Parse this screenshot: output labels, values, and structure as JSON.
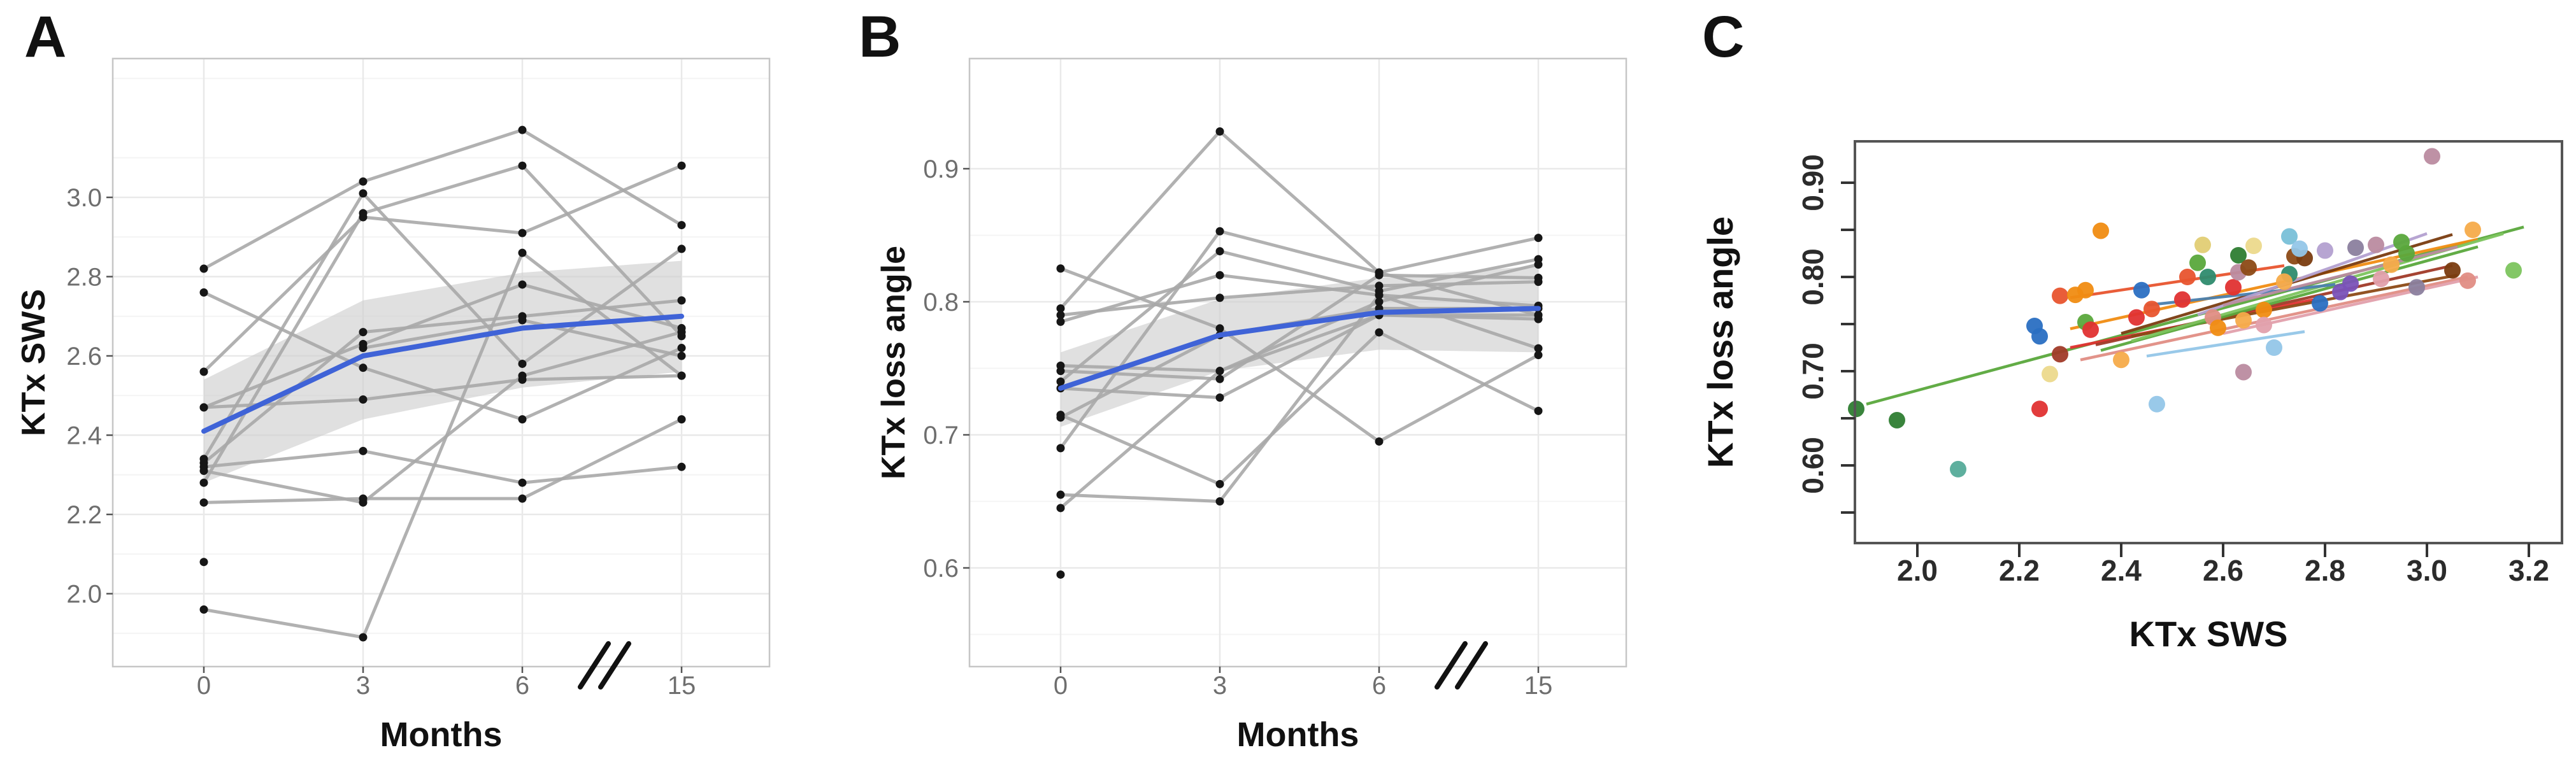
{
  "figure": {
    "panel_a_letter": "A",
    "panel_b_letter": "B",
    "panel_c_letter": "C"
  },
  "chart_data": [
    {
      "type": "line",
      "panel": "A",
      "xlabel": "Months",
      "ylabel": "KTx SWS",
      "x_categories": [
        "0",
        "3",
        "6",
        "15"
      ],
      "x_axis_break": "between 6 and 15",
      "ylim": [
        1.82,
        3.35
      ],
      "ytick_values": [
        2.0,
        2.2,
        2.4,
        2.6,
        2.8,
        3.0
      ],
      "ytick_labels": [
        "2.0",
        "2.2",
        "2.4",
        "2.6",
        "2.8",
        "3.0"
      ],
      "ytick_minor": [
        1.9,
        2.1,
        2.3,
        2.5,
        2.7,
        2.9,
        3.1,
        3.3
      ],
      "grid": "on",
      "subjects": [
        [
          2.82,
          3.04,
          3.17,
          2.93
        ],
        [
          2.76,
          2.57,
          2.44,
          2.62
        ],
        [
          2.56,
          2.95,
          2.91,
          3.08
        ],
        [
          2.47,
          2.63,
          2.78,
          2.67
        ],
        [
          2.47,
          2.49,
          2.54,
          2.55
        ],
        [
          2.34,
          3.01,
          2.58,
          2.87
        ],
        [
          2.33,
          2.66,
          2.7,
          2.74
        ],
        [
          2.32,
          2.36,
          2.28,
          2.32
        ],
        [
          2.31,
          2.23,
          2.55,
          2.66
        ],
        [
          2.28,
          2.96,
          3.08,
          2.65
        ],
        [
          2.23,
          2.24,
          2.24,
          2.44
        ],
        [
          null,
          2.62,
          2.69,
          2.6
        ],
        [
          1.96,
          1.89,
          2.86,
          2.55
        ]
      ],
      "isolated_points": [
        [
          0,
          2.08
        ]
      ],
      "mean_line": [
        2.41,
        2.6,
        2.67,
        2.7
      ],
      "band_lower": [
        2.28,
        2.44,
        2.52,
        2.56
      ],
      "band_upper": [
        2.54,
        2.74,
        2.81,
        2.84
      ],
      "colors": {
        "mean": "#3f63d7",
        "subject": "#a9a9a9",
        "point": "#161616",
        "band": "#cdcdcd",
        "grid_major": "#e9e9e9",
        "grid_minor": "#f4f4f4",
        "border": "#c6c6c6",
        "tick_label": "#6e6e6e",
        "axis_title": "#111111"
      }
    },
    {
      "type": "line",
      "panel": "B",
      "xlabel": "Months",
      "ylabel": "KTx loss angle",
      "x_categories": [
        "0",
        "3",
        "6",
        "15"
      ],
      "x_axis_break": "between 6 and 15",
      "ylim": [
        0.525,
        0.945
      ],
      "ytick_values": [
        0.6,
        0.7,
        0.8,
        0.9
      ],
      "ytick_labels": [
        "0.6",
        "0.7",
        "0.8",
        "0.9"
      ],
      "ytick_minor": [
        0.55,
        0.65,
        0.75,
        0.85
      ],
      "grid": "on",
      "subjects": [
        [
          0.825,
          0.78,
          0.695,
          0.76
        ],
        [
          0.795,
          0.928,
          0.822,
          0.79
        ],
        [
          0.79,
          0.803,
          0.812,
          0.815
        ],
        [
          0.785,
          0.82,
          0.805,
          0.797
        ],
        [
          0.752,
          0.748,
          0.8,
          0.828
        ],
        [
          0.748,
          0.742,
          0.82,
          0.818
        ],
        [
          0.74,
          0.838,
          0.808,
          0.832
        ],
        [
          0.735,
          0.728,
          0.79,
          0.787
        ],
        [
          0.715,
          0.663,
          0.777,
          0.718
        ],
        [
          0.713,
          0.775,
          0.795,
          0.795
        ],
        [
          0.69,
          0.853,
          0.822,
          0.848
        ],
        [
          0.655,
          0.65,
          0.805,
          0.765
        ],
        [
          0.645,
          0.748,
          0.79,
          0.79
        ]
      ],
      "isolated_points": [
        [
          0,
          0.595
        ]
      ],
      "mean_line": [
        0.735,
        0.775,
        0.792,
        0.795
      ],
      "band_lower": [
        0.706,
        0.748,
        0.764,
        0.762
      ],
      "band_upper": [
        0.762,
        0.802,
        0.818,
        0.827
      ],
      "colors": {
        "mean": "#3f63d7",
        "subject": "#a9a9a9",
        "point": "#161616",
        "band": "#cdcdcd",
        "grid_major": "#e9e9e9",
        "grid_minor": "#f4f4f4",
        "border": "#c6c6c6",
        "tick_label": "#6e6e6e",
        "axis_title": "#111111"
      }
    },
    {
      "type": "scatter",
      "panel": "C",
      "xlabel": "KTx SWS",
      "ylabel": "KTx loss angle",
      "xlim": [
        1.85,
        3.27
      ],
      "ylim": [
        0.52,
        0.945
      ],
      "xtick_values": [
        2.0,
        2.2,
        2.4,
        2.6,
        2.8,
        3.0,
        3.2
      ],
      "xtick_labels": [
        "2.0",
        "2.2",
        "2.4",
        "2.6",
        "2.8",
        "3.0",
        "3.2"
      ],
      "ytick_values": [
        0.6,
        0.7,
        0.8,
        0.9
      ],
      "ytick_labels": [
        "0.60",
        "0.70",
        "0.80",
        "0.90"
      ],
      "ytick_minor": [
        0.55,
        0.65,
        0.75,
        0.85
      ],
      "grid": "off",
      "palette": [
        "#2e7d32",
        "#5aa83c",
        "#7cc45e",
        "#55ab99",
        "#2e8b6e",
        "#79c0d8",
        "#93c6e8",
        "#2a6fc2",
        "#4a7fae",
        "#7a52b8",
        "#b3a0d0",
        "#8b7f9e",
        "#bb8ba0",
        "#e2a0ac",
        "#e08d84",
        "#e03131",
        "#a03a28",
        "#8c4a16",
        "#7a3c10",
        "#e8542e",
        "#f08c12",
        "#f5ab4a",
        "#e2cd74",
        "#ecd98c"
      ],
      "points": [
        [
          1.88,
          0.66,
          0
        ],
        [
          1.96,
          0.648,
          0
        ],
        [
          2.08,
          0.596,
          3
        ],
        [
          2.23,
          0.748,
          7
        ],
        [
          2.24,
          0.737,
          7
        ],
        [
          2.24,
          0.66,
          15
        ],
        [
          2.26,
          0.697,
          23
        ],
        [
          2.28,
          0.718,
          16
        ],
        [
          2.28,
          0.78,
          19
        ],
        [
          2.31,
          0.781,
          20
        ],
        [
          2.33,
          0.786,
          20
        ],
        [
          2.36,
          0.849,
          20
        ],
        [
          2.33,
          0.752,
          1
        ],
        [
          2.34,
          0.744,
          15
        ],
        [
          2.4,
          0.712,
          21
        ],
        [
          2.43,
          0.757,
          15
        ],
        [
          2.44,
          0.786,
          7
        ],
        [
          2.46,
          0.766,
          19
        ],
        [
          2.47,
          0.665,
          6
        ],
        [
          2.52,
          0.776,
          15
        ],
        [
          2.53,
          0.8,
          19
        ],
        [
          2.55,
          0.815,
          1
        ],
        [
          2.56,
          0.834,
          22
        ],
        [
          2.57,
          0.8,
          4
        ],
        [
          2.58,
          0.757,
          14
        ],
        [
          2.59,
          0.746,
          20
        ],
        [
          2.62,
          0.789,
          15
        ],
        [
          2.63,
          0.823,
          0
        ],
        [
          2.63,
          0.805,
          12
        ],
        [
          2.64,
          0.754,
          21
        ],
        [
          2.64,
          0.699,
          12
        ],
        [
          2.65,
          0.81,
          17
        ],
        [
          2.66,
          0.833,
          23
        ],
        [
          2.68,
          0.765,
          20
        ],
        [
          2.68,
          0.749,
          13
        ],
        [
          2.7,
          0.725,
          6
        ],
        [
          2.73,
          0.843,
          5
        ],
        [
          2.73,
          0.803,
          4
        ],
        [
          2.72,
          0.795,
          21
        ],
        [
          2.74,
          0.822,
          17
        ],
        [
          2.76,
          0.82,
          18
        ],
        [
          2.75,
          0.83,
          6
        ],
        [
          2.79,
          0.772,
          7
        ],
        [
          2.8,
          0.828,
          10
        ],
        [
          2.83,
          0.784,
          9
        ],
        [
          2.85,
          0.793,
          9
        ],
        [
          2.86,
          0.831,
          11
        ],
        [
          2.9,
          0.834,
          12
        ],
        [
          2.91,
          0.798,
          13
        ],
        [
          2.93,
          0.813,
          21
        ],
        [
          2.95,
          0.837,
          1
        ],
        [
          2.96,
          0.825,
          1
        ],
        [
          2.98,
          0.789,
          11
        ],
        [
          3.01,
          0.928,
          12
        ],
        [
          3.05,
          0.807,
          18
        ],
        [
          3.08,
          0.796,
          14
        ],
        [
          3.09,
          0.85,
          21
        ],
        [
          3.17,
          0.807,
          2
        ]
      ],
      "regression_lines": [
        [
          1.9,
          0.665,
          3.19,
          0.853,
          1
        ],
        [
          2.3,
          0.745,
          3.1,
          0.84,
          20
        ],
        [
          2.3,
          0.778,
          2.72,
          0.812,
          19
        ],
        [
          2.32,
          0.712,
          3.08,
          0.8,
          14
        ],
        [
          2.3,
          0.725,
          2.78,
          0.776,
          15
        ],
        [
          2.35,
          0.728,
          3.05,
          0.812,
          16
        ],
        [
          2.42,
          0.737,
          3.06,
          0.802,
          17
        ],
        [
          2.4,
          0.74,
          3.05,
          0.845,
          18
        ],
        [
          2.36,
          0.722,
          3.1,
          0.832,
          1
        ],
        [
          2.42,
          0.732,
          3.15,
          0.846,
          2
        ],
        [
          2.45,
          0.77,
          2.82,
          0.792,
          8
        ],
        [
          2.45,
          0.716,
          2.76,
          0.742,
          6
        ],
        [
          2.55,
          0.76,
          3.0,
          0.846,
          10
        ],
        [
          2.6,
          0.77,
          3.06,
          0.832,
          12
        ],
        [
          2.6,
          0.74,
          3.1,
          0.8,
          13
        ]
      ],
      "colors": {
        "border": "#555555",
        "tick": "#333333",
        "tick_label": "#2b2b2b",
        "axis_title": "#111111"
      }
    }
  ]
}
